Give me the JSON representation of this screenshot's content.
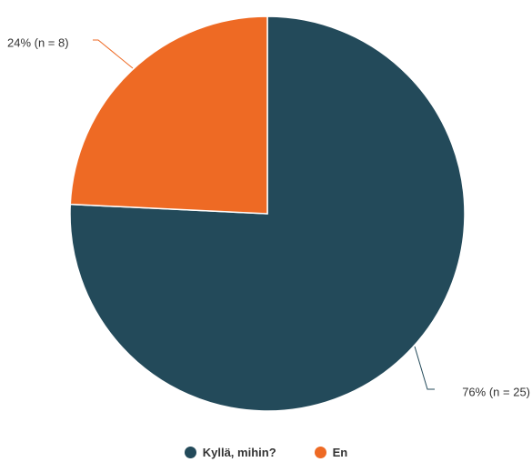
{
  "chart_data": {
    "type": "pie",
    "slices": [
      {
        "name": "Kyllä, mihin?",
        "value": 25,
        "percent": 76,
        "label": "76% (n = 25)",
        "color": "#234a5a"
      },
      {
        "name": "En",
        "value": 8,
        "percent": 24,
        "label": "24% (n = 8)",
        "color": "#ee6a24"
      }
    ],
    "legend_position": "bottom"
  }
}
